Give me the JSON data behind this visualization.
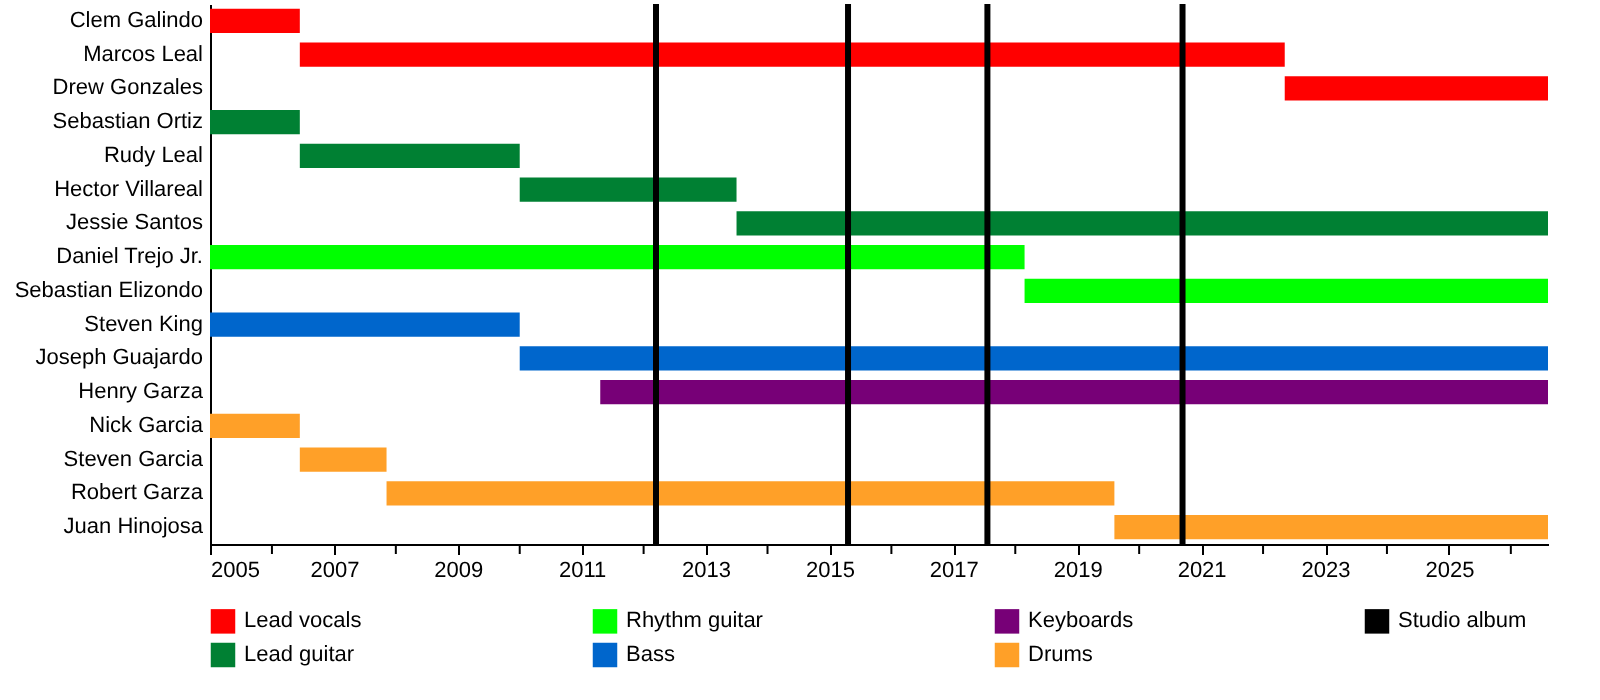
{
  "chart_data": {
    "type": "bar",
    "orientation": "horizontal",
    "grid": false,
    "legend": "bottom",
    "categories": [
      "Clem Galindo",
      "Marcos Leal",
      "Drew Gonzales",
      "Sebastian Ortiz",
      "Rudy Leal",
      "Hector Villareal",
      "Jessie Santos",
      "Daniel Trejo Jr.",
      "Sebastian Elizondo",
      "Steven King",
      "Joseph Guajardo",
      "Henry Garza",
      "Nick Garcia",
      "Steven Garcia",
      "Robert Garza",
      "Juan Hinojosa"
    ],
    "series": [
      {
        "name": "Lead vocals",
        "color": "#ff0000",
        "base": [
          2005,
          2006.45,
          2022.35,
          null,
          null,
          null,
          null,
          null,
          null,
          null,
          null,
          null,
          null,
          null,
          null,
          null
        ],
        "values": [
          1.45,
          15.9,
          4.25,
          null,
          null,
          null,
          null,
          null,
          null,
          null,
          null,
          null,
          null,
          null,
          null,
          null
        ]
      },
      {
        "name": "Lead guitar",
        "color": "#008033",
        "base": [
          null,
          null,
          null,
          2005,
          2006.45,
          2010,
          2013.5,
          null,
          null,
          null,
          null,
          null,
          null,
          null,
          null,
          null
        ],
        "values": [
          null,
          null,
          null,
          1.45,
          3.55,
          3.5,
          13.1,
          null,
          null,
          null,
          null,
          null,
          null,
          null,
          null,
          null
        ]
      },
      {
        "name": "Rhythm guitar",
        "color": "#00ff00",
        "base": [
          null,
          null,
          null,
          null,
          null,
          null,
          null,
          2005,
          2018.15,
          null,
          null,
          null,
          null,
          null,
          null,
          null
        ],
        "values": [
          null,
          null,
          null,
          null,
          null,
          null,
          null,
          13.15,
          8.45,
          null,
          null,
          null,
          null,
          null,
          null,
          null
        ]
      },
      {
        "name": "Bass",
        "color": "#0066cc",
        "base": [
          null,
          null,
          null,
          null,
          null,
          null,
          null,
          null,
          null,
          2005,
          2010,
          null,
          null,
          null,
          null,
          null
        ],
        "values": [
          null,
          null,
          null,
          null,
          null,
          null,
          null,
          null,
          null,
          5,
          16.6,
          null,
          null,
          null,
          null,
          null
        ]
      },
      {
        "name": "Keyboards",
        "color": "#770077",
        "base": [
          null,
          null,
          null,
          null,
          null,
          null,
          null,
          null,
          null,
          null,
          null,
          2011.3,
          null,
          null,
          null,
          null
        ],
        "values": [
          null,
          null,
          null,
          null,
          null,
          null,
          null,
          null,
          null,
          null,
          null,
          15.3,
          null,
          null,
          null,
          null
        ]
      },
      {
        "name": "Drums",
        "color": "#ffa028",
        "base": [
          null,
          null,
          null,
          null,
          null,
          null,
          null,
          null,
          null,
          null,
          null,
          null,
          2005,
          2006.45,
          2007.85,
          2019.6
        ],
        "values": [
          null,
          null,
          null,
          null,
          null,
          null,
          null,
          null,
          null,
          null,
          null,
          null,
          1.45,
          1.4,
          11.75,
          7
        ]
      }
    ],
    "xlim": [
      2005,
      2026.6
    ],
    "xticks": [
      2005,
      {
        "value": 2006,
        "label": null
      },
      2007,
      {
        "value": 2008,
        "label": null
      },
      2009,
      {
        "value": 2010,
        "label": null
      },
      2011,
      {
        "value": 2012,
        "label": null
      },
      2013,
      {
        "value": 2014,
        "label": null
      },
      2015,
      {
        "value": 2016,
        "label": null
      },
      2017,
      {
        "value": 2018,
        "label": null
      },
      2019,
      {
        "value": 2020,
        "label": null
      },
      2021,
      {
        "value": 2022,
        "label": null
      },
      2023,
      {
        "value": 2024,
        "label": null
      },
      2025,
      {
        "value": 2026,
        "label": null
      }
    ],
    "ref_lines": [
      {
        "axis": "x",
        "value": 2012.2,
        "label": "Studio album",
        "color": "#000000"
      },
      {
        "axis": "x",
        "value": 2015.3,
        "color": "#000000"
      },
      {
        "axis": "x",
        "value": 2017.55,
        "color": "#000000"
      },
      {
        "axis": "x",
        "value": 2020.7,
        "color": "#000000"
      }
    ]
  }
}
